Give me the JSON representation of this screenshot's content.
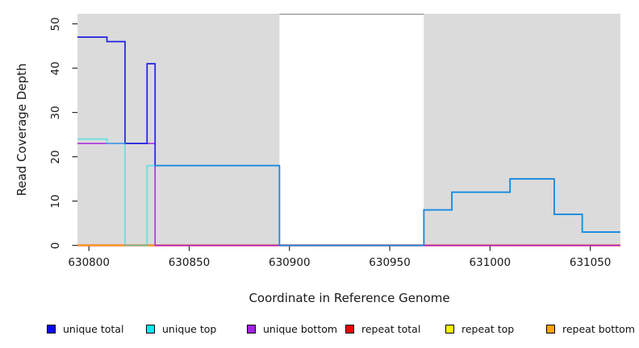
{
  "chart_data": {
    "type": "step-line",
    "title": "",
    "xlabel": "Coordinate in Reference Genome",
    "ylabel": "Read Coverage Depth",
    "xlim": [
      630794,
      631065
    ],
    "ylim": [
      0,
      52
    ],
    "grid": false,
    "x_ticks": [
      630800,
      630850,
      630900,
      630950,
      631000,
      631050
    ],
    "y_ticks": [
      0,
      10,
      20,
      30,
      40,
      50
    ],
    "shaded_color": "#DBDBDB",
    "shaded_regions": [
      {
        "from": 630794,
        "to": 630895
      },
      {
        "from": 630967,
        "to": 631065
      }
    ],
    "gap_top_border_color": "#8E8E8E",
    "x_breakpoints": [
      630794,
      630809,
      630818,
      630829,
      630833,
      630895,
      630967,
      630981,
      631010,
      631032,
      631046,
      631065
    ],
    "series": [
      {
        "name": "unique total",
        "color": "#2121DE",
        "width": 1.7,
        "opacity": 1,
        "values": [
          47,
          46,
          23,
          41,
          18,
          0,
          8,
          12,
          15,
          7,
          3
        ]
      },
      {
        "name": "unique top",
        "color": "#00E5E5",
        "width": 1.7,
        "opacity": 0.55,
        "values": [
          24,
          23,
          0,
          18,
          18,
          0,
          8,
          12,
          15,
          7,
          3
        ]
      },
      {
        "name": "unique bottom",
        "color": "#A228DC",
        "width": 1.5,
        "opacity": 1,
        "values": [
          23,
          23,
          23,
          23,
          0,
          0,
          0,
          0,
          0,
          0,
          0
        ]
      },
      {
        "name": "repeat total",
        "color": "#FF2222",
        "width": 2.4,
        "opacity": 1,
        "values": [
          0,
          0,
          0,
          0,
          0,
          0,
          0,
          0,
          0,
          0,
          0
        ]
      },
      {
        "name": "repeat top",
        "color": "#FFEE22",
        "width": 1.4,
        "opacity": 1,
        "values": [
          0,
          0,
          0,
          0,
          0,
          0,
          0,
          0,
          0,
          0,
          0
        ]
      },
      {
        "name": "repeat bottom",
        "color": "#FFA51E",
        "width": 1.6,
        "opacity": 1,
        "values": [
          0,
          0,
          0,
          0,
          0,
          0,
          0,
          0,
          0,
          0,
          0
        ]
      }
    ],
    "draw_order": [
      "repeat total",
      "repeat top",
      "repeat bottom",
      "unique bottom",
      "unique total",
      "unique top"
    ],
    "legend": {
      "position": "bottom",
      "items": [
        {
          "label": "unique total",
          "color": "#0808F0"
        },
        {
          "label": "unique top",
          "color": "#00EEEE"
        },
        {
          "label": "unique bottom",
          "color": "#A321E8"
        },
        {
          "label": "repeat total",
          "color": "#F50000"
        },
        {
          "label": "repeat top",
          "color": "#F5F500"
        },
        {
          "label": "repeat bottom",
          "color": "#FFA500"
        }
      ]
    },
    "tick_color": "#2b2b2b",
    "label_color": "#1a1a1a"
  }
}
